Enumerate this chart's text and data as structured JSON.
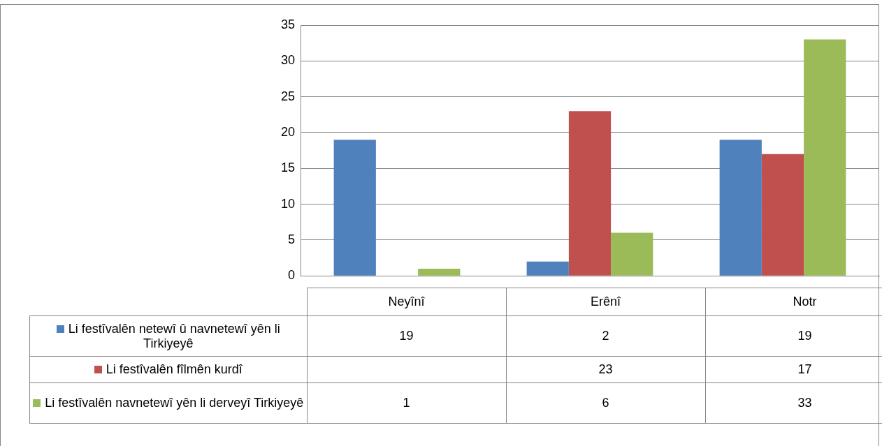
{
  "chart_data": {
    "type": "bar",
    "categories": [
      "Neyînî",
      "Erênî",
      "Notr"
    ],
    "series": [
      {
        "name": "Li festîvalên netewî û navnetewî yên li Tirkiyeyê",
        "color": "#4f81bd",
        "values": [
          19,
          2,
          19
        ]
      },
      {
        "name": "Li festîvalên fîlmên kurdî",
        "color": "#c0504d",
        "values": [
          null,
          23,
          17
        ]
      },
      {
        "name": "Li festîvalên navnetewî yên li derveyî Tirkiyeyê",
        "color": "#9bbb59",
        "values": [
          1,
          6,
          33
        ]
      }
    ],
    "ylim": [
      0,
      35
    ],
    "yticks": [
      0,
      5,
      10,
      15,
      20,
      25,
      30,
      35
    ],
    "grid": "y",
    "legend": "bottom",
    "data_labels": true
  }
}
